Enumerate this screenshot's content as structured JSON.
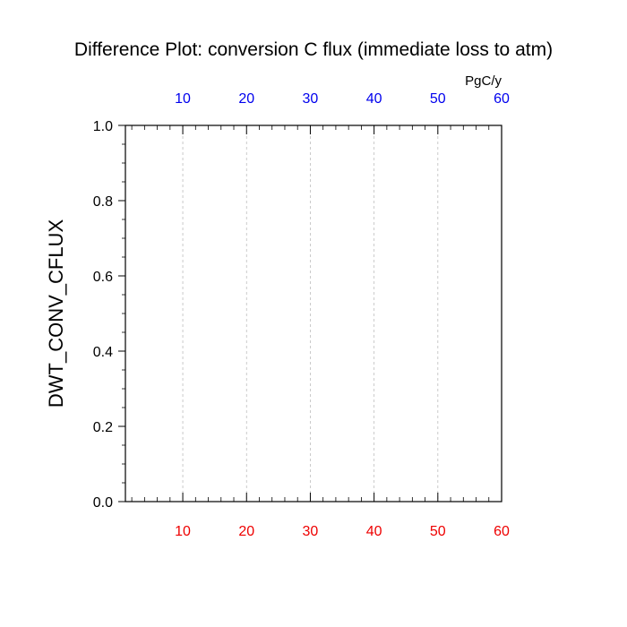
{
  "chart_data": {
    "type": "line",
    "title": "Difference Plot: conversion C flux (immediate loss to atm)",
    "units": "PgC/y",
    "xlabel": "",
    "ylabel": "DWT_CONV_CFLUX",
    "xlim": [
      1,
      60
    ],
    "ylim": [
      0.0,
      1.0
    ],
    "x_ticks": [
      10,
      20,
      30,
      40,
      50,
      60
    ],
    "x_tick_labels": [
      "10",
      "20",
      "30",
      "40",
      "50",
      "60"
    ],
    "x_minor_step": 2,
    "y_ticks": [
      0.0,
      0.2,
      0.4,
      0.6,
      0.8,
      1.0
    ],
    "y_tick_labels": [
      "0.0",
      "0.2",
      "0.4",
      "0.6",
      "0.8",
      "1.0"
    ],
    "y_minor_step": 0.05,
    "grid": "vertical-dashed",
    "top_axis_color": "#0000ee",
    "bottom_axis_color": "#ee0000",
    "series": []
  }
}
